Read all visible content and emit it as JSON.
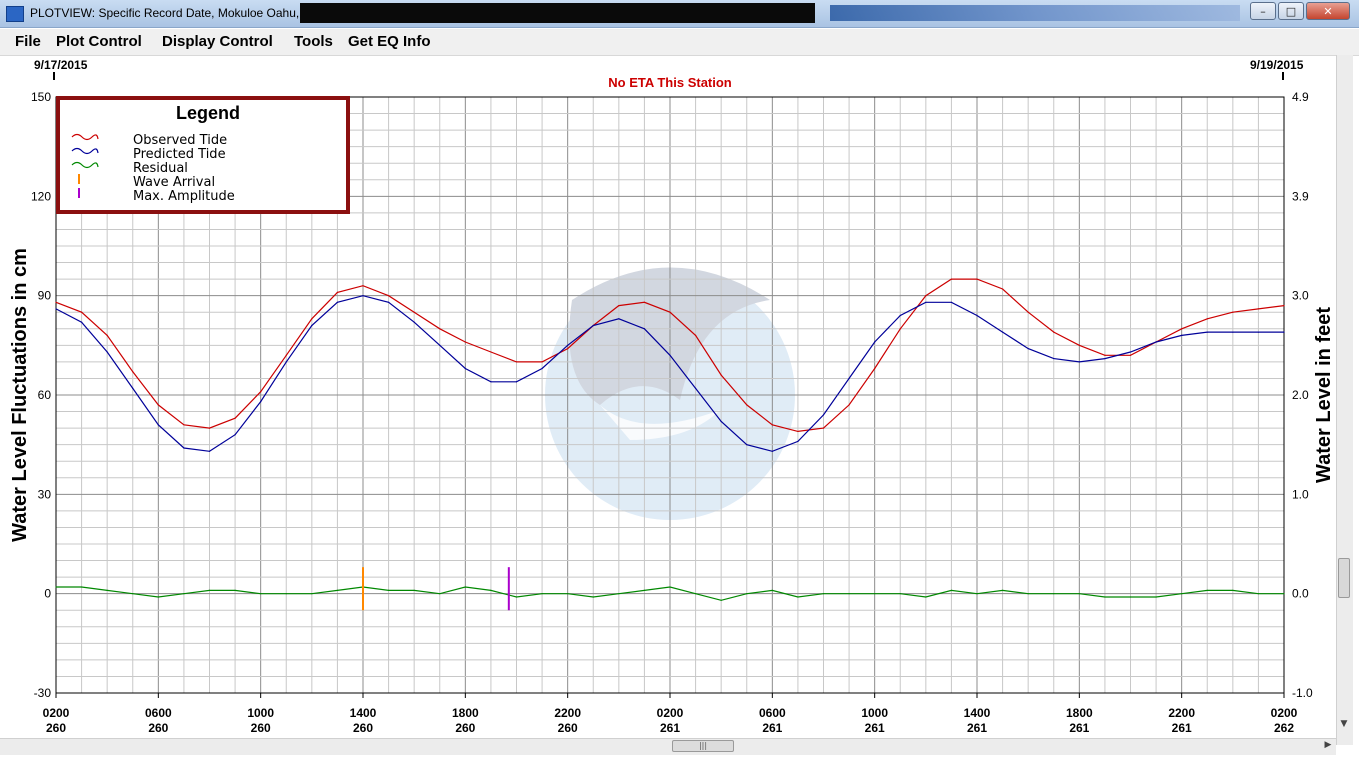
{
  "window": {
    "title": "PLOTVIEW: Specific Record Date, Mokuloe Oahu, HI: mokuA",
    "buttons": {
      "minimize": "–",
      "maximize": "□",
      "close": "✕"
    }
  },
  "menu": [
    "File",
    "Plot Control",
    "Display Control",
    "Tools",
    "Get EQ Info"
  ],
  "chart_data": {
    "type": "line",
    "start_date_label": "9/17/2015",
    "end_date_label": "9/19/2015",
    "subtitle": "No ETA This Station",
    "ylabel": "Water Level Fluctuations in cm",
    "y2label": "Water Level in feet",
    "ylim": [
      -30,
      150
    ],
    "y_ticks": [
      "150",
      "120",
      "90",
      "60",
      "30",
      "0",
      "-30"
    ],
    "y2lim": [
      -1.0,
      4.9
    ],
    "y2_ticks": [
      "4.9",
      "3.9",
      "3.0",
      "2.0",
      "1.0",
      "0.0",
      "-1.0"
    ],
    "xlim": [
      2,
      50
    ],
    "x_ticks": [
      {
        "time": "0200",
        "day": "260"
      },
      {
        "time": "0600",
        "day": "260"
      },
      {
        "time": "1000",
        "day": "260"
      },
      {
        "time": "1400",
        "day": "260"
      },
      {
        "time": "1800",
        "day": "260"
      },
      {
        "time": "2200",
        "day": "260"
      },
      {
        "time": "0200",
        "day": "261"
      },
      {
        "time": "0600",
        "day": "261"
      },
      {
        "time": "1000",
        "day": "261"
      },
      {
        "time": "1400",
        "day": "261"
      },
      {
        "time": "1800",
        "day": "261"
      },
      {
        "time": "2200",
        "day": "261"
      },
      {
        "time": "0200",
        "day": "262"
      }
    ],
    "grid": true,
    "legend": {
      "title": "Legend",
      "position": "top-left",
      "items": [
        {
          "label": "Observed Tide",
          "color": "#cc0000",
          "kind": "wave"
        },
        {
          "label": "Predicted Tide",
          "color": "#000099",
          "kind": "wave"
        },
        {
          "label": "Residual",
          "color": "#008800",
          "kind": "wave"
        },
        {
          "label": "Wave Arrival",
          "color": "#ff8800",
          "kind": "bar"
        },
        {
          "label": "Max. Amplitude",
          "color": "#aa00cc",
          "kind": "bar"
        }
      ]
    },
    "series": [
      {
        "name": "Observed Tide",
        "color": "#cc0000",
        "x": [
          2,
          3,
          4,
          5,
          6,
          7,
          8,
          9,
          10,
          11,
          12,
          13,
          14,
          15,
          16,
          17,
          18,
          19,
          20,
          21,
          22,
          23,
          24,
          25,
          26,
          27,
          28,
          29,
          30,
          31,
          32,
          33,
          34,
          35,
          36,
          37,
          38,
          39,
          40,
          41,
          42,
          43,
          44,
          45,
          46,
          47,
          48,
          49,
          50
        ],
        "y": [
          88,
          85,
          78,
          67,
          57,
          51,
          50,
          53,
          61,
          72,
          83,
          91,
          93,
          90,
          85,
          80,
          76,
          73,
          70,
          70,
          74,
          81,
          87,
          88,
          85,
          78,
          66,
          57,
          51,
          49,
          50,
          57,
          68,
          80,
          90,
          95,
          95,
          92,
          85,
          79,
          75,
          72,
          72,
          76,
          80,
          83,
          85,
          86,
          87
        ]
      },
      {
        "name": "Predicted Tide",
        "color": "#000099",
        "x": [
          2,
          3,
          4,
          5,
          6,
          7,
          8,
          9,
          10,
          11,
          12,
          13,
          14,
          15,
          16,
          17,
          18,
          19,
          20,
          21,
          22,
          23,
          24,
          25,
          26,
          27,
          28,
          29,
          30,
          31,
          32,
          33,
          34,
          35,
          36,
          37,
          38,
          39,
          40,
          41,
          42,
          43,
          44,
          45,
          46,
          47,
          48,
          49,
          50
        ],
        "y": [
          86,
          82,
          73,
          62,
          51,
          44,
          43,
          48,
          58,
          70,
          81,
          88,
          90,
          88,
          82,
          75,
          68,
          64,
          64,
          68,
          75,
          81,
          83,
          80,
          72,
          62,
          52,
          45,
          43,
          46,
          54,
          65,
          76,
          84,
          88,
          88,
          84,
          79,
          74,
          71,
          70,
          71,
          73,
          76,
          78,
          79,
          79,
          79,
          79
        ]
      },
      {
        "name": "Residual",
        "color": "#008800",
        "x": [
          2,
          3,
          4,
          5,
          6,
          7,
          8,
          9,
          10,
          11,
          12,
          13,
          14,
          15,
          16,
          17,
          18,
          19,
          20,
          21,
          22,
          23,
          24,
          25,
          26,
          27,
          28,
          29,
          30,
          31,
          32,
          33,
          34,
          35,
          36,
          37,
          38,
          39,
          40,
          41,
          42,
          43,
          44,
          45,
          46,
          47,
          48,
          49,
          50
        ],
        "y": [
          2,
          2,
          1,
          0,
          -1,
          0,
          1,
          1,
          0,
          0,
          0,
          1,
          2,
          1,
          1,
          0,
          2,
          1,
          -1,
          0,
          0,
          -1,
          0,
          1,
          2,
          0,
          -2,
          0,
          1,
          -1,
          0,
          0,
          0,
          0,
          -1,
          1,
          0,
          1,
          0,
          0,
          0,
          -1,
          -1,
          -1,
          0,
          1,
          1,
          0,
          0
        ]
      }
    ],
    "markers": [
      {
        "name": "Wave Arrival",
        "x": 14.0,
        "color": "#ff8800"
      },
      {
        "name": "Max. Amplitude",
        "x": 19.7,
        "color": "#aa00cc"
      }
    ]
  }
}
